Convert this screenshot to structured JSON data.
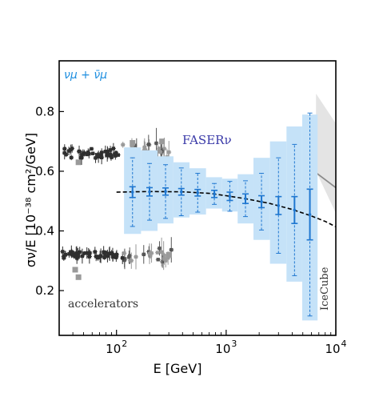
{
  "chart_data": {
    "type": "scatter",
    "xlabel": "E [GeV]",
    "ylabel": "σν/E [10⁻³⁸ cm²/GeV]",
    "xscale": "log",
    "xlim": [
      30,
      10000
    ],
    "ylim": [
      0.05,
      0.97
    ],
    "x_ticks": [
      {
        "value": 100,
        "base": "10",
        "exp": "2"
      },
      {
        "value": 1000,
        "base": "10",
        "exp": "3"
      },
      {
        "value": 10000,
        "base": "10",
        "exp": "4"
      }
    ],
    "y_ticks": [
      {
        "value": 0.2,
        "label": "0.2"
      },
      {
        "value": 0.4,
        "label": "0.4"
      },
      {
        "value": 0.6,
        "label": "0.6"
      },
      {
        "value": 0.8,
        "label": "0.8"
      }
    ],
    "grid": false,
    "annotations": {
      "neutrino_label": "νμ + ν̄μ",
      "faser_label": "FASERν",
      "accelerators_label": "accelerators",
      "icecube_label": "IceCube"
    },
    "colors": {
      "faser_band": "#c5e2f8",
      "faser_points": "#1f77d0",
      "faser_label": "#3a3aa8",
      "neutrino_label": "#1f8fe0",
      "accelerator_points": "#333333",
      "icecube_band": "#e4e4e4",
      "icecube_line": "#8a8a8a",
      "sm_curve": "#000000"
    },
    "faser_points": [
      {
        "e": 140,
        "y": 0.53,
        "err_syst": 0.115,
        "err_stat": 0.018,
        "band": [
          0.39,
          0.68
        ]
      },
      {
        "e": 200,
        "y": 0.531,
        "err_syst": 0.095,
        "err_stat": 0.014,
        "band": [
          0.4,
          0.67
        ]
      },
      {
        "e": 280,
        "y": 0.532,
        "err_syst": 0.09,
        "err_stat": 0.012,
        "band": [
          0.425,
          0.65
        ]
      },
      {
        "e": 390,
        "y": 0.531,
        "err_syst": 0.08,
        "err_stat": 0.011,
        "band": [
          0.445,
          0.63
        ]
      },
      {
        "e": 550,
        "y": 0.528,
        "err_syst": 0.065,
        "err_stat": 0.011,
        "band": [
          0.455,
          0.61
        ]
      },
      {
        "e": 780,
        "y": 0.524,
        "err_syst": 0.035,
        "err_stat": 0.012,
        "band": [
          0.475,
          0.58
        ]
      },
      {
        "e": 1080,
        "y": 0.516,
        "err_syst": 0.05,
        "err_stat": 0.014,
        "band": [
          0.465,
          0.575
        ]
      },
      {
        "e": 1500,
        "y": 0.508,
        "err_syst": 0.06,
        "err_stat": 0.016,
        "band": [
          0.425,
          0.59
        ]
      },
      {
        "e": 2100,
        "y": 0.498,
        "err_syst": 0.095,
        "err_stat": 0.02,
        "band": [
          0.37,
          0.645
        ]
      },
      {
        "e": 3000,
        "y": 0.485,
        "err_syst": 0.16,
        "err_stat": 0.03,
        "band": [
          0.29,
          0.7
        ]
      },
      {
        "e": 4200,
        "y": 0.47,
        "err_syst": 0.22,
        "err_stat": 0.045,
        "band": [
          0.23,
          0.75
        ]
      },
      {
        "e": 5800,
        "y": 0.455,
        "err_syst": 0.34,
        "err_stat": 0.085,
        "band": [
          0.1,
          0.79
        ]
      }
    ],
    "sm_curve": [
      [
        100,
        0.53
      ],
      [
        200,
        0.532
      ],
      [
        400,
        0.531
      ],
      [
        700,
        0.526
      ],
      [
        1000,
        0.518
      ],
      [
        1500,
        0.508
      ],
      [
        2500,
        0.492
      ],
      [
        4000,
        0.472
      ],
      [
        6000,
        0.45
      ],
      [
        8000,
        0.432
      ],
      [
        10000,
        0.414
      ]
    ],
    "icecube_band": {
      "x": [
        6600,
        10000
      ],
      "upper": [
        0.86,
        0.76
      ],
      "lower": [
        0.6,
        0.46
      ]
    },
    "icecube_line": [
      [
        6600,
        0.595
      ],
      [
        10000,
        0.545
      ]
    ],
    "accelerators": {
      "upper_range": [
        0.6,
        0.72
      ],
      "lower_range": [
        0.28,
        0.36
      ],
      "x_range": [
        32,
        320
      ],
      "seed": 7
    }
  }
}
